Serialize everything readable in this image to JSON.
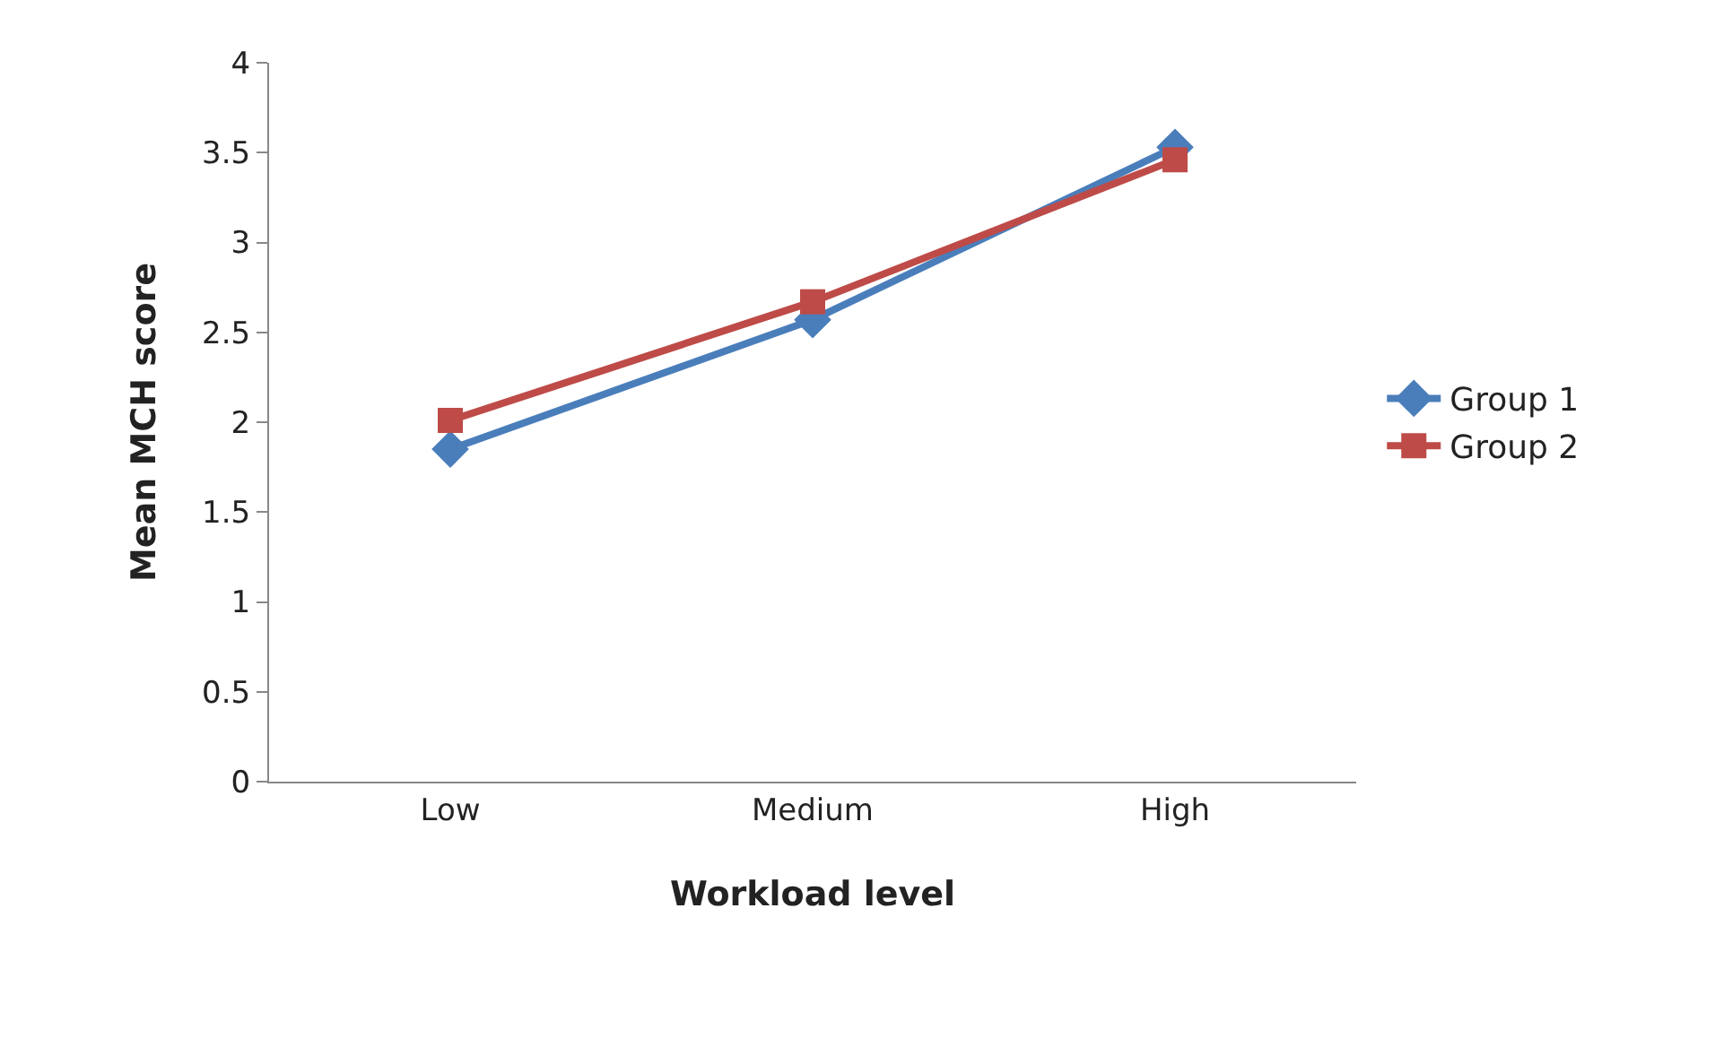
{
  "chart_data": {
    "type": "line",
    "xlabel": "Workload level",
    "ylabel": "Mean MCH score",
    "categories": [
      "Low",
      "Medium",
      "High"
    ],
    "series": [
      {
        "name": "Group 1",
        "color": "#4a7ebb",
        "marker": "diamond",
        "values": [
          1.85,
          2.57,
          3.53
        ]
      },
      {
        "name": "Group 2",
        "color": "#be4b48",
        "marker": "square",
        "values": [
          2.01,
          2.67,
          3.46
        ]
      }
    ],
    "ylim": [
      0,
      4
    ],
    "yticks": [
      0,
      0.5,
      1,
      1.5,
      2,
      2.5,
      3,
      3.5,
      4
    ],
    "legend": "right",
    "line_style": "solid"
  }
}
